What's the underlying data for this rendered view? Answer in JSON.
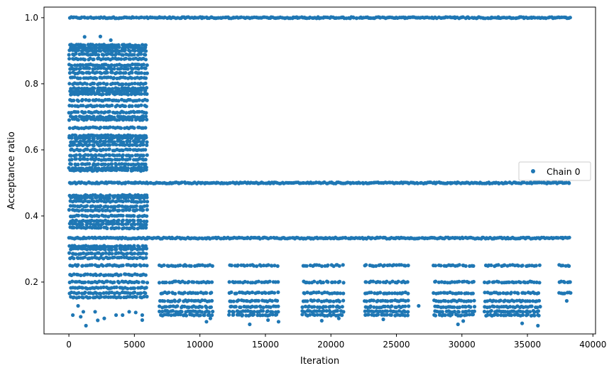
{
  "chart_data": {
    "type": "scatter",
    "xlabel": "Iteration",
    "ylabel": "Acceptance ratio",
    "xlim": [
      -1900,
      40200
    ],
    "ylim": [
      0.043,
      1.032
    ],
    "x_ticks": [
      0,
      5000,
      10000,
      15000,
      20000,
      25000,
      30000,
      35000,
      40000
    ],
    "x_tick_labels": [
      "0",
      "5000",
      "10000",
      "15000",
      "20000",
      "25000",
      "30000",
      "35000",
      "40000"
    ],
    "y_ticks": [
      0.2,
      0.4,
      0.6,
      0.8,
      1.0
    ],
    "y_tick_labels": [
      "0.2",
      "0.4",
      "0.6",
      "0.8",
      "1.0"
    ],
    "grid": false,
    "legend_position": "center-right",
    "color": "#1f77b4",
    "series": [
      {
        "name": "Chain 0",
        "segments": [
          {
            "x_range": [
              0,
              6000
            ],
            "bands": [
              1.0,
              0.917,
              0.909,
              0.9,
              0.889,
              0.875,
              0.857,
              0.846,
              0.833,
              0.818,
              0.8,
              0.786,
              0.778,
              0.769,
              0.75,
              0.733,
              0.714,
              0.7,
              0.692,
              0.667,
              0.643,
              0.636,
              0.625,
              0.615,
              0.6,
              0.583,
              0.571,
              0.556,
              0.545,
              0.538,
              0.5,
              0.462,
              0.455,
              0.444,
              0.429,
              0.417,
              0.4,
              0.385,
              0.375,
              0.364,
              0.333,
              0.308,
              0.3,
              0.286,
              0.273,
              0.25,
              0.222,
              0.2,
              0.182,
              0.167,
              0.154
            ],
            "outliers": [
              [
                1200,
                0.942
              ],
              [
                2400,
                0.943
              ],
              [
                3200,
                0.932
              ],
              [
                700,
                0.128
              ],
              [
                1100,
                0.11
              ],
              [
                300,
                0.1
              ],
              [
                2000,
                0.11
              ],
              [
                2700,
                0.09
              ],
              [
                3600,
                0.1
              ],
              [
                4100,
                0.1
              ],
              [
                5100,
                0.108
              ],
              [
                5600,
                0.1
              ],
              [
                4600,
                0.11
              ],
              [
                1300,
                0.068
              ],
              [
                5600,
                0.085
              ],
              [
                2200,
                0.084
              ],
              [
                900,
                0.095
              ]
            ]
          },
          {
            "x_range": [
              6000,
              38300
            ],
            "bands": [
              1.0,
              0.5,
              0.333
            ]
          },
          {
            "x_range": [
              6900,
              11000
            ],
            "bands": [
              0.25,
              0.2,
              0.167,
              0.143,
              0.125,
              0.111,
              0.1
            ],
            "outliers": [
              [
                10500,
                0.08
              ],
              [
                10800,
                0.09
              ]
            ]
          },
          {
            "x_range": [
              12200,
              16000
            ],
            "bands": [
              0.25,
              0.2,
              0.167,
              0.143,
              0.125,
              0.111,
              0.1
            ],
            "outliers": [
              [
                13800,
                0.072
              ],
              [
                15200,
                0.085
              ],
              [
                16000,
                0.08
              ]
            ]
          },
          {
            "x_range": [
              17800,
              21000
            ],
            "bands": [
              0.25,
              0.2,
              0.167,
              0.143,
              0.125,
              0.111,
              0.1
            ],
            "outliers": [
              [
                19300,
                0.083
              ],
              [
                20600,
                0.09
              ]
            ]
          },
          {
            "x_range": [
              22500,
              26000
            ],
            "bands": [
              0.25,
              0.2,
              0.167,
              0.143,
              0.125,
              0.111,
              0.1
            ],
            "outliers": [
              [
                24000,
                0.087
              ],
              [
                26700,
                0.128
              ]
            ]
          },
          {
            "x_range": [
              27800,
              31000
            ],
            "bands": [
              0.25,
              0.2,
              0.167,
              0.143,
              0.125,
              0.111,
              0.1
            ],
            "outliers": [
              [
                29700,
                0.072
              ],
              [
                30100,
                0.082
              ]
            ]
          },
          {
            "x_range": [
              31700,
              36000
            ],
            "bands": [
              0.25,
              0.2,
              0.167,
              0.143,
              0.125,
              0.111,
              0.1
            ],
            "outliers": [
              [
                34600,
                0.075
              ],
              [
                35800,
                0.068
              ],
              [
                38000,
                0.143
              ]
            ]
          },
          {
            "x_range": [
              37300,
              38300
            ],
            "bands": [
              0.25,
              0.2,
              0.167
            ],
            "outliers": [
              [
                38200,
                0.2
              ],
              [
                38300,
                0.167
              ]
            ]
          }
        ]
      }
    ]
  }
}
